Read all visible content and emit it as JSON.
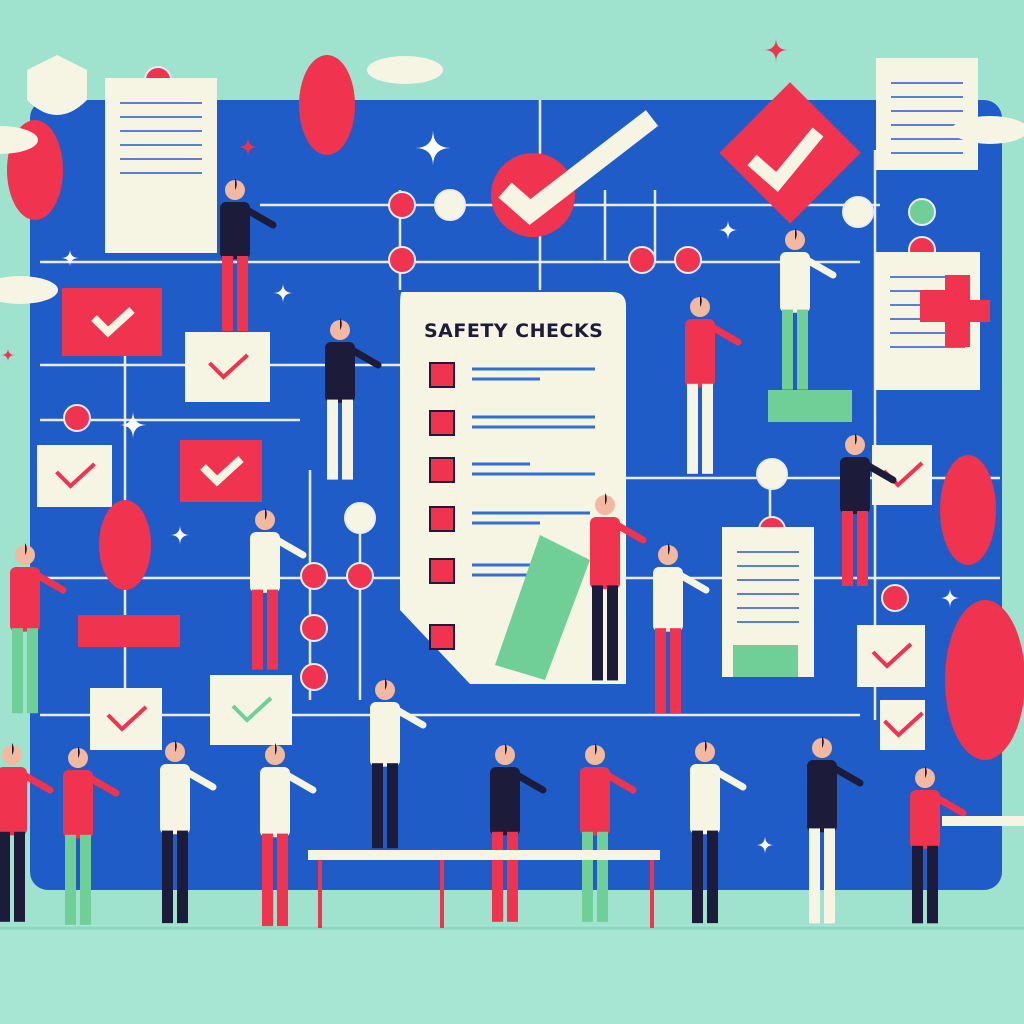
{
  "checklist": {
    "title": "SAFETY CHECKS",
    "item_count": 6
  },
  "colors": {
    "background": "#9fe3cf",
    "panel": "#1f5cc8",
    "accent_red": "#f0334f",
    "paper": "#f6f5e4",
    "green": "#6fcf97",
    "ink": "#1c1b3a"
  }
}
